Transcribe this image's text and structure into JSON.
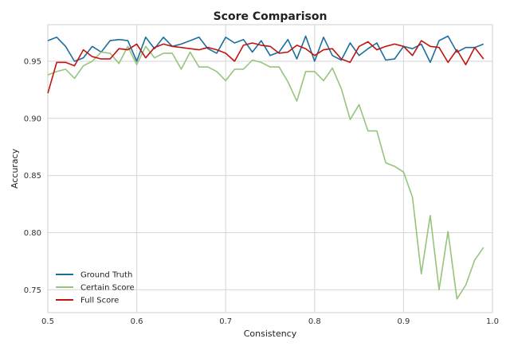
{
  "chart_data": {
    "type": "line",
    "title": "Score Comparison",
    "xlabel": "Consistency",
    "ylabel": "Accuracy",
    "xlim": [
      0.5,
      1.0
    ],
    "ylim": [
      0.73,
      0.982
    ],
    "grid": true,
    "legend_position": "bottom-left",
    "xticks": [
      0.5,
      0.6,
      0.7,
      0.8,
      0.9,
      1.0
    ],
    "xtick_labels": [
      "0.5",
      "0.6",
      "0.7",
      "0.8",
      "0.9",
      "1.0"
    ],
    "yticks": [
      0.75,
      0.8,
      0.85,
      0.9,
      0.95
    ],
    "ytick_labels": [
      "0.75",
      "0.80",
      "0.85",
      "0.90",
      "0.95"
    ],
    "x": [
      0.5,
      0.51,
      0.52,
      0.53,
      0.54,
      0.55,
      0.56,
      0.57,
      0.58,
      0.59,
      0.6,
      0.61,
      0.62,
      0.63,
      0.64,
      0.65,
      0.66,
      0.67,
      0.68,
      0.69,
      0.7,
      0.71,
      0.72,
      0.73,
      0.74,
      0.75,
      0.76,
      0.77,
      0.78,
      0.79,
      0.8,
      0.81,
      0.82,
      0.83,
      0.84,
      0.85,
      0.86,
      0.87,
      0.88,
      0.89,
      0.9,
      0.91,
      0.92,
      0.93,
      0.94,
      0.95,
      0.96,
      0.97,
      0.98,
      0.99
    ],
    "series": [
      {
        "name": "Ground Truth",
        "color": "#1a6f9e",
        "values": [
          0.968,
          0.971,
          0.963,
          0.95,
          0.953,
          0.963,
          0.958,
          0.968,
          0.969,
          0.968,
          0.95,
          0.971,
          0.961,
          0.971,
          0.963,
          0.965,
          0.968,
          0.971,
          0.961,
          0.957,
          0.971,
          0.966,
          0.969,
          0.958,
          0.968,
          0.955,
          0.958,
          0.969,
          0.952,
          0.972,
          0.95,
          0.971,
          0.955,
          0.951,
          0.966,
          0.955,
          0.961,
          0.966,
          0.951,
          0.952,
          0.963,
          0.961,
          0.965,
          0.949,
          0.968,
          0.972,
          0.958,
          0.962,
          0.962,
          0.965
        ]
      },
      {
        "name": "Certain Score",
        "color": "#95c47c",
        "values": [
          0.938,
          0.941,
          0.943,
          0.935,
          0.946,
          0.95,
          0.958,
          0.957,
          0.948,
          0.963,
          0.947,
          0.963,
          0.953,
          0.957,
          0.957,
          0.943,
          0.958,
          0.945,
          0.945,
          0.941,
          0.933,
          0.943,
          0.943,
          0.951,
          0.949,
          0.945,
          0.945,
          0.932,
          0.915,
          0.941,
          0.941,
          0.933,
          0.944,
          0.926,
          0.899,
          0.912,
          0.889,
          0.889,
          0.861,
          0.858,
          0.853,
          0.831,
          0.764,
          0.815,
          0.75,
          0.801,
          0.742,
          0.754,
          0.776,
          0.787
        ]
      },
      {
        "name": "Full Score",
        "color": "#c3130f",
        "values": [
          0.922,
          0.949,
          0.949,
          0.946,
          0.96,
          0.954,
          0.952,
          0.952,
          0.961,
          0.96,
          0.965,
          0.953,
          0.962,
          0.965,
          0.963,
          0.962,
          0.961,
          0.96,
          0.962,
          0.96,
          0.957,
          0.95,
          0.964,
          0.966,
          0.964,
          0.963,
          0.957,
          0.958,
          0.964,
          0.961,
          0.955,
          0.96,
          0.961,
          0.952,
          0.949,
          0.963,
          0.967,
          0.96,
          0.963,
          0.965,
          0.963,
          0.955,
          0.968,
          0.963,
          0.962,
          0.949,
          0.96,
          0.947,
          0.962,
          0.952
        ]
      }
    ]
  }
}
